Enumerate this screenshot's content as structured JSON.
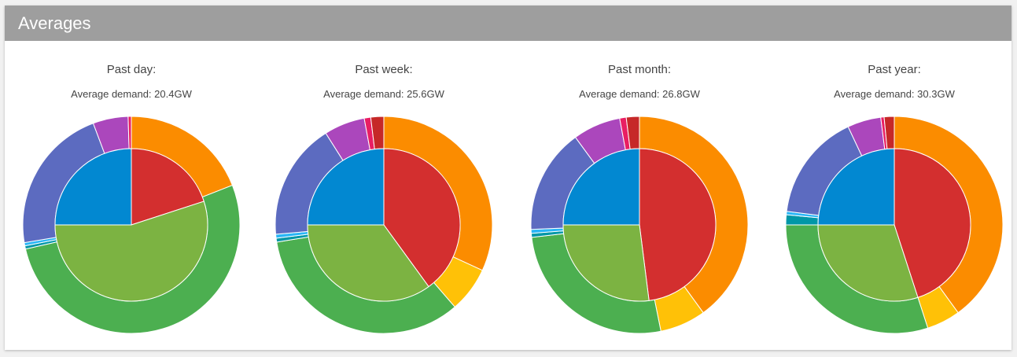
{
  "panel": {
    "title": "Averages"
  },
  "colors": {
    "header": "#9e9e9e",
    "inner": [
      "#d32f2f",
      "#7cb342",
      "#0288d1"
    ],
    "outer": [
      "#fb8c00",
      "#ffc107",
      "#4caf50",
      "#0097a7",
      "#29b6f6",
      "#5c6bc0",
      "#ab47bc",
      "#e91e63",
      "#c62828"
    ]
  },
  "chart_data": [
    {
      "type": "pie",
      "title": "Past day:",
      "subtitle": "Average demand: 20.4GW",
      "inner": {
        "values": [
          0.2,
          0.55,
          0.25
        ]
      },
      "outer": {
        "values": [
          0.2,
          0.0,
          0.55,
          0.005,
          0.005,
          0.23,
          0.055,
          0.005,
          0.0
        ]
      }
    },
    {
      "type": "pie",
      "title": "Past week:",
      "subtitle": "Average demand: 25.6GW",
      "inner": {
        "values": [
          0.4,
          0.35,
          0.25
        ]
      },
      "outer": {
        "values": [
          0.33,
          0.07,
          0.35,
          0.006,
          0.006,
          0.18,
          0.063,
          0.01,
          0.02
        ]
      }
    },
    {
      "type": "pie",
      "title": "Past month:",
      "subtitle": "Average demand: 26.8GW",
      "inner": {
        "values": [
          0.48,
          0.27,
          0.25
        ]
      },
      "outer": {
        "values": [
          0.41,
          0.07,
          0.27,
          0.006,
          0.006,
          0.16,
          0.073,
          0.01,
          0.02
        ]
      }
    },
    {
      "type": "pie",
      "title": "Past year:",
      "subtitle": "Average demand: 30.3GW",
      "inner": {
        "values": [
          0.45,
          0.3,
          0.25
        ]
      },
      "outer": {
        "values": [
          0.4,
          0.05,
          0.3,
          0.015,
          0.005,
          0.16,
          0.05,
          0.005,
          0.015
        ]
      }
    }
  ]
}
